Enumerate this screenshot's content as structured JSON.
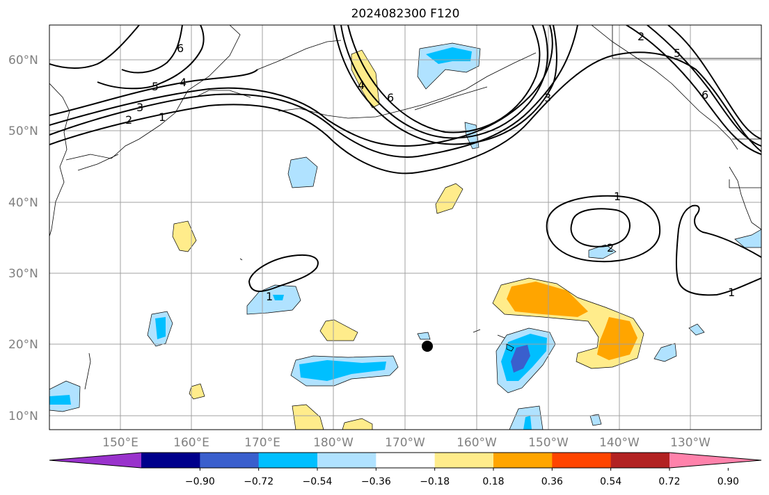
{
  "title": "2024082300 F120",
  "lat_labels": [
    "60°N",
    "50°N",
    "40°N",
    "30°N",
    "20°N",
    "10°N"
  ],
  "lon_labels": [
    "150°E",
    "160°E",
    "170°E",
    "180°W",
    "170°W",
    "160°W",
    "150°W",
    "140°W",
    "130°W"
  ],
  "colorbar": {
    "ticks": [
      "−0.90",
      "−0.72",
      "−0.54",
      "−0.36",
      "−0.18",
      "0.18",
      "0.36",
      "0.54",
      "0.72",
      "0.90"
    ],
    "colors": [
      "#9932cc",
      "#00008b",
      "#3a5fcd",
      "#00bfff",
      "#b0e2ff",
      "#ffffff",
      "#ffec8b",
      "#ffa500",
      "#ff4500",
      "#b22222",
      "#ff82ab"
    ]
  },
  "contour_labels": [
    "6",
    "5",
    "4",
    "3",
    "2",
    "1",
    "4",
    "6",
    "3",
    "2",
    "5",
    "6",
    "1",
    "2",
    "1",
    "1"
  ],
  "marker": {
    "name": "black-dot"
  }
}
